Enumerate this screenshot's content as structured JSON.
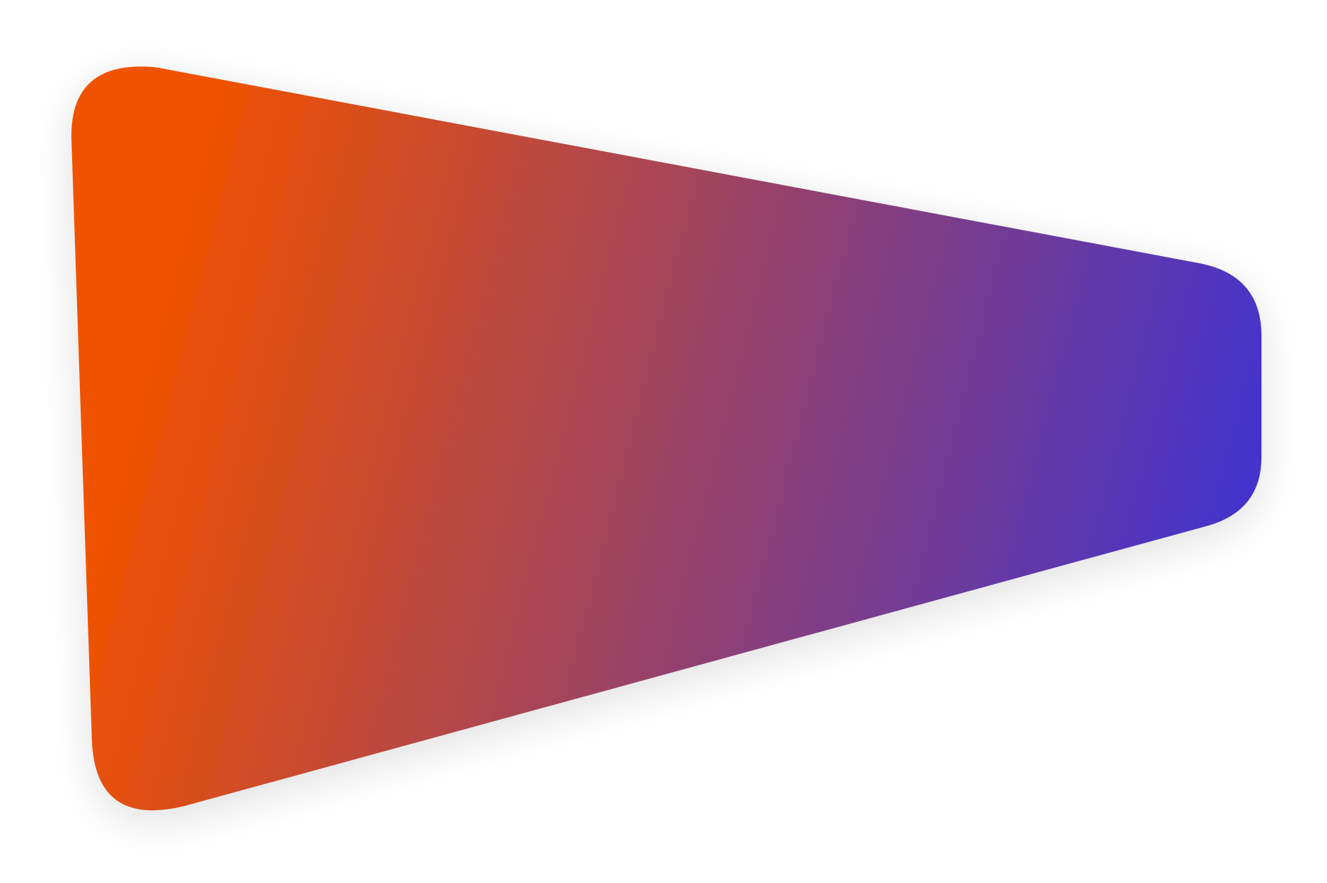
{
  "shape": {
    "kind": "rounded-trapezoid",
    "gradient_start_color": "#F05200",
    "gradient_end_color": "#4433CC",
    "shadow_color": "#000000"
  }
}
